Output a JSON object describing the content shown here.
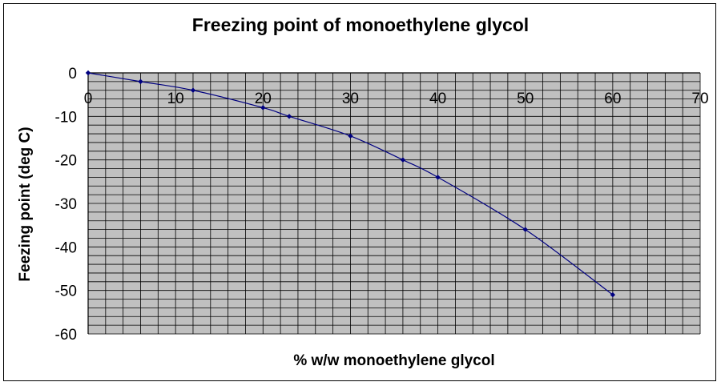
{
  "chart_data": {
    "type": "line",
    "title": "Freezing point of monoethylene glycol",
    "xlabel": "% w/w monoethylene glycol",
    "ylabel": "Feezing point (deg C)",
    "xlim": [
      0,
      70
    ],
    "ylim": [
      -60,
      0
    ],
    "xticks": [
      0,
      10,
      20,
      30,
      40,
      50,
      60,
      70
    ],
    "yticks": [
      0,
      -10,
      -20,
      -30,
      -40,
      -50,
      -60
    ],
    "x_minor_step": 2,
    "y_minor_step": 2,
    "grid": true,
    "plot_background": "#c0c0c0",
    "grid_color": "#000000",
    "series": [
      {
        "color": "#000080",
        "x": [
          0,
          6,
          12,
          20,
          23,
          30,
          36,
          40,
          50,
          60
        ],
        "y": [
          0,
          -2,
          -4,
          -8,
          -10,
          -14.5,
          -20,
          -24,
          -36,
          -51
        ]
      }
    ]
  }
}
